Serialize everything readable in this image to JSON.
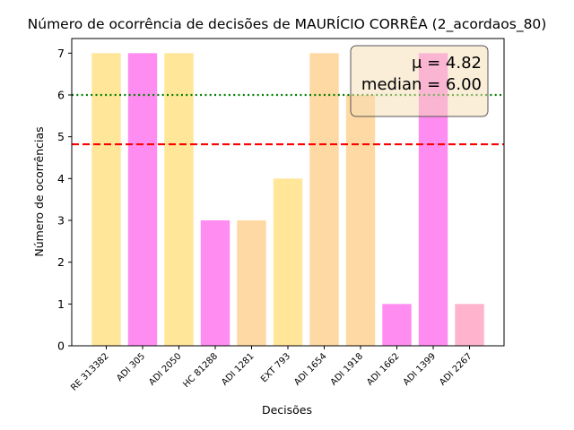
{
  "chart_data": {
    "type": "bar",
    "title": "Número de ocorrência de decisões de MAURÍCIO CORRÊA (2_acordaos_80)",
    "xlabel": "Decisões",
    "ylabel": "Número de ocorrências",
    "categories": [
      "RE 313382",
      "ADI 305",
      "ADI 2050",
      "HC 81288",
      "ADI 1281",
      "EXT 793",
      "ADI 1654",
      "ADI 1918",
      "ADI 1662",
      "ADI 1399",
      "ADI 2267"
    ],
    "values": [
      7,
      7,
      7,
      3,
      3,
      4,
      7,
      6,
      1,
      7,
      1
    ],
    "bar_colors": [
      "#ffe699",
      "#ff8cf0",
      "#ffe699",
      "#ff8cf0",
      "#ffd9a3",
      "#ffe699",
      "#ffd9a3",
      "#ffd9a3",
      "#ff8cf0",
      "#ff8cf0",
      "#ffb3cc"
    ],
    "ylim": [
      0,
      7.35
    ],
    "yticks": [
      "0",
      "1",
      "2",
      "3",
      "4",
      "5",
      "6",
      "7"
    ],
    "reference_lines": [
      {
        "name": "mean",
        "value": 4.82,
        "color": "#ff0000",
        "style": "dashed"
      },
      {
        "name": "median",
        "value": 6.0,
        "color": "#008000",
        "style": "dotted"
      }
    ],
    "annotation": {
      "mean_text": "μ = 4.82",
      "median_text": "median = 6.00",
      "placement": "top-right"
    },
    "grid": false
  }
}
